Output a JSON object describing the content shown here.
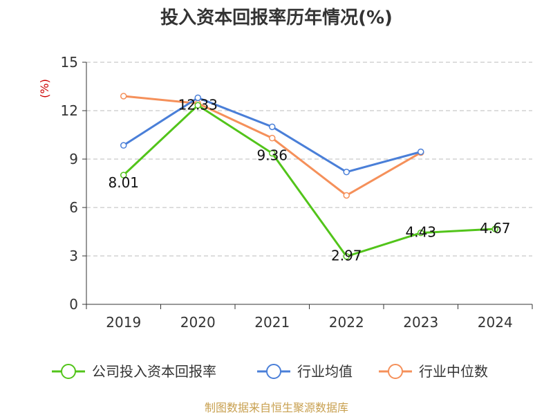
{
  "chart_data": {
    "type": "line",
    "title": "投入资本回报率历年情况(%)",
    "ylabel": "(%)",
    "categories": [
      "2019",
      "2020",
      "2021",
      "2022",
      "2023",
      "2024"
    ],
    "yticks": [
      "0",
      "3",
      "6",
      "9",
      "12",
      "15"
    ],
    "ylim": [
      0,
      15
    ],
    "grid": true,
    "legend_position": "bottom",
    "series": [
      {
        "name": "公司投入资本回报率",
        "color": "#52c41a",
        "values": [
          8.01,
          12.33,
          9.36,
          2.97,
          4.43,
          4.67
        ],
        "labels": [
          "8.01",
          "12.33",
          "9.36",
          "2.97",
          "4.43",
          "4.67"
        ]
      },
      {
        "name": "行业均值",
        "color": "#4a7fd8",
        "values": [
          9.85,
          12.8,
          11.0,
          8.2,
          9.45,
          null
        ]
      },
      {
        "name": "行业中位数",
        "color": "#f5905a",
        "values": [
          12.9,
          12.45,
          10.3,
          6.75,
          9.4,
          null
        ]
      }
    ]
  },
  "footer": "制图数据来自恒生聚源数据库"
}
